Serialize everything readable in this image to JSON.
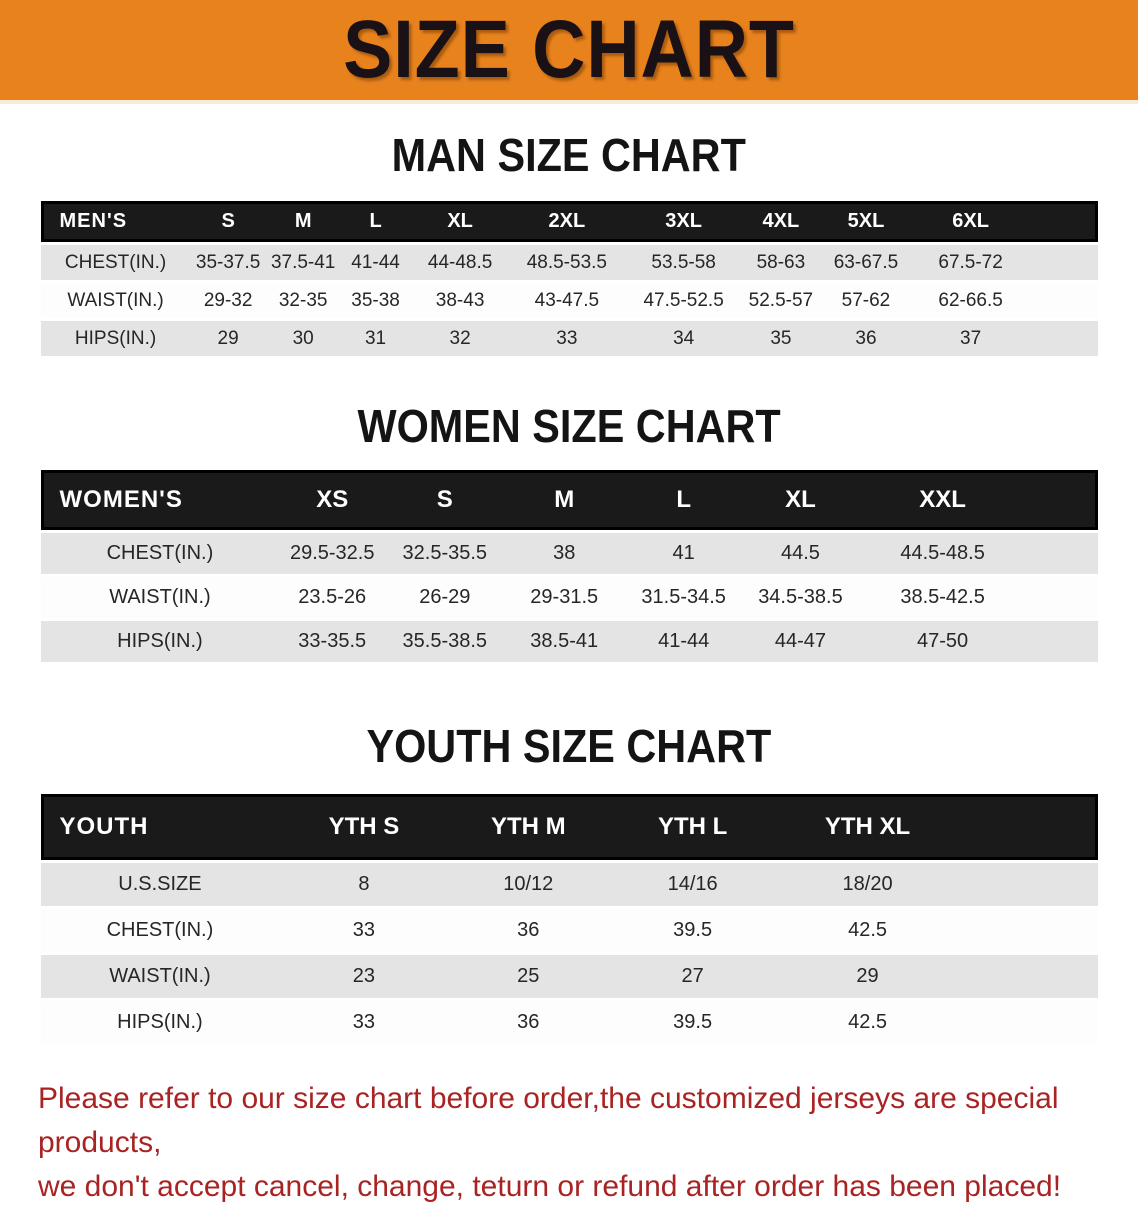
{
  "banner": {
    "title": "SIZE CHART"
  },
  "colors": {
    "banner_bg": "#e8821d",
    "table_header_bg": "#1a1a1a",
    "row_gray": "#e4e4e4",
    "row_white": "#fdfdfd",
    "disclaimer_red": "#a92323"
  },
  "sections": [
    {
      "heading": "MAN SIZE CHART",
      "table": {
        "label_header": "MEN'S",
        "col_headers": [
          "S",
          "M",
          "L",
          "XL",
          "2XL",
          "3XL",
          "4XL",
          "5XL",
          "6XL"
        ],
        "rows": [
          {
            "label": "CHEST(IN.)",
            "values": [
              "35-37.5",
              "37.5-41",
              "41-44",
              "44-48.5",
              "48.5-53.5",
              "53.5-58",
              "58-63",
              "63-67.5",
              "67.5-72"
            ]
          },
          {
            "label": "WAIST(IN.)",
            "values": [
              "29-32",
              "32-35",
              "35-38",
              "38-43",
              "43-47.5",
              "47.5-52.5",
              "52.5-57",
              "57-62",
              "62-66.5"
            ]
          },
          {
            "label": "HIPS(IN.)",
            "values": [
              "29",
              "30",
              "31",
              "32",
              "33",
              "34",
              "35",
              "36",
              "37"
            ]
          }
        ]
      }
    },
    {
      "heading": "WOMEN SIZE CHART",
      "table": {
        "label_header": "WOMEN'S",
        "col_headers": [
          "XS",
          "S",
          "M",
          "L",
          "XL",
          "XXL"
        ],
        "rows": [
          {
            "label": "CHEST(IN.)",
            "values": [
              "29.5-32.5",
              "32.5-35.5",
              "38",
              "41",
              "44.5",
              "44.5-48.5"
            ]
          },
          {
            "label": "WAIST(IN.)",
            "values": [
              "23.5-26",
              "26-29",
              "29-31.5",
              "31.5-34.5",
              "34.5-38.5",
              "38.5-42.5"
            ]
          },
          {
            "label": "HIPS(IN.)",
            "values": [
              "33-35.5",
              "35.5-38.5",
              "38.5-41",
              "41-44",
              "44-47",
              "47-50"
            ]
          }
        ]
      }
    },
    {
      "heading": "YOUTH SIZE CHART",
      "table": {
        "label_header": "YOUTH",
        "col_headers": [
          "YTH S",
          "YTH M",
          "YTH L",
          "YTH XL"
        ],
        "rows": [
          {
            "label": "U.S.SIZE",
            "values": [
              "8",
              "10/12",
              "14/16",
              "18/20"
            ]
          },
          {
            "label": "CHEST(IN.)",
            "values": [
              "33",
              "36",
              "39.5",
              "42.5"
            ]
          },
          {
            "label": "WAIST(IN.)",
            "values": [
              "23",
              "25",
              "27",
              "29"
            ]
          },
          {
            "label": "HIPS(IN.)",
            "values": [
              "33",
              "36",
              "39.5",
              "42.5"
            ]
          }
        ]
      }
    }
  ],
  "disclaimer": {
    "line1": "Please refer to our size chart before order,the customized jerseys are special products,",
    "line2": "we don't accept cancel, change, teturn or refund after order has been placed!"
  }
}
